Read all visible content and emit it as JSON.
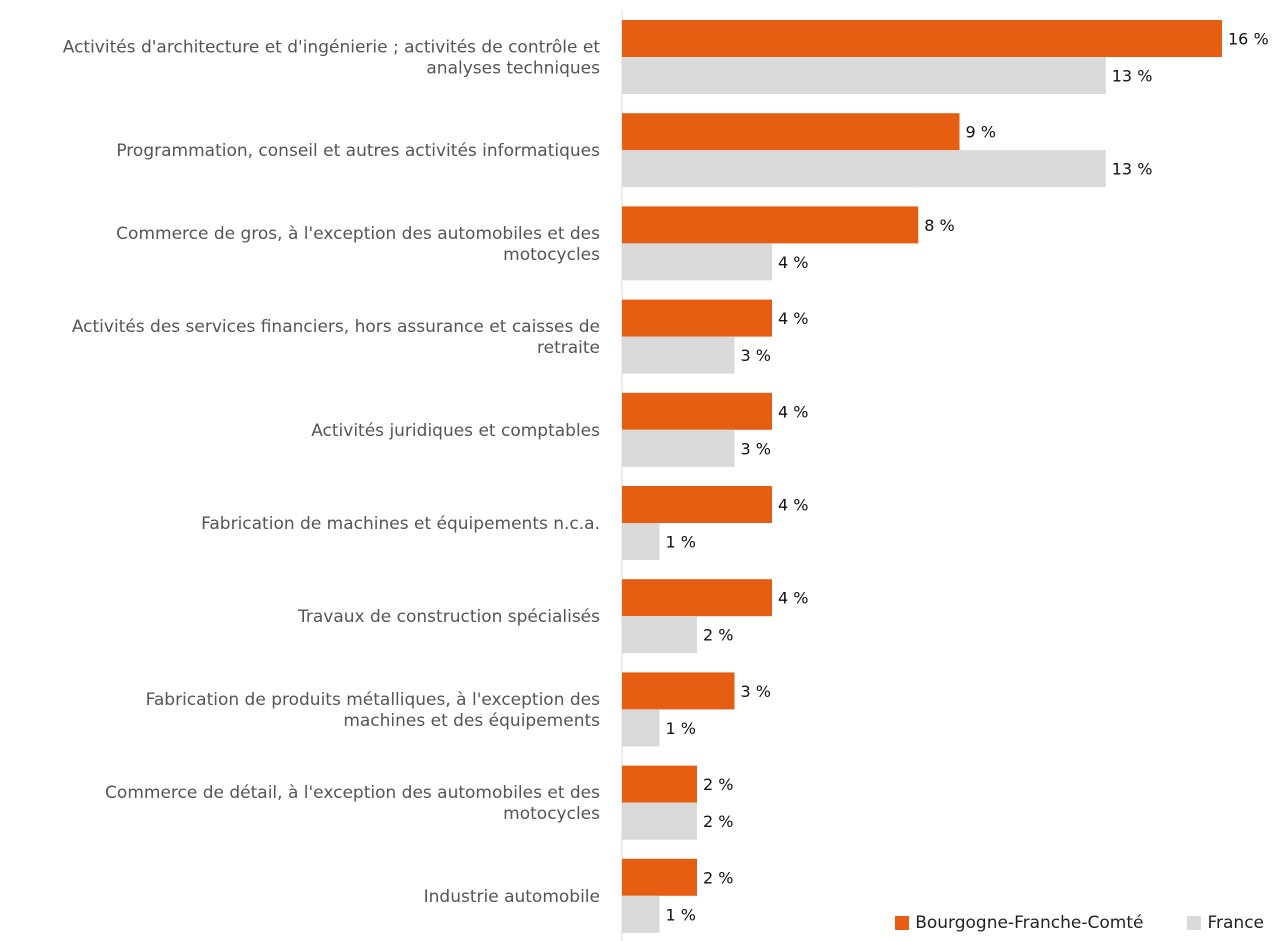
{
  "chart_data": {
    "type": "bar",
    "orientation": "horizontal",
    "categories": [
      [
        "Activités d'architecture et d'ingénierie ; activités de contrôle et",
        "analyses techniques"
      ],
      [
        "Programmation, conseil et autres activités informatiques"
      ],
      [
        "Commerce de gros, à l'exception des automobiles et des",
        "motocycles"
      ],
      [
        "Activités des services financiers, hors assurance et caisses de",
        "retraite"
      ],
      [
        "Activités juridiques et comptables"
      ],
      [
        "Fabrication de machines et équipements n.c.a."
      ],
      [
        "Travaux de construction spécialisés"
      ],
      [
        "Fabrication de produits métalliques, à l'exception des",
        "machines et des équipements"
      ],
      [
        "Commerce de détail, à l'exception des automobiles et des",
        "motocycles"
      ],
      [
        "Industrie automobile"
      ]
    ],
    "series": [
      {
        "name": "Bourgogne-Franche-Comté",
        "color": "#e55e12",
        "values": [
          16.0,
          9.0,
          7.9,
          4.0,
          4.0,
          4.0,
          4.0,
          3.0,
          2.0,
          2.0
        ],
        "labels": [
          "16 %",
          "9 %",
          "8 %",
          "4 %",
          "4 %",
          "4 %",
          "4 %",
          "3 %",
          "2 %",
          "2 %"
        ]
      },
      {
        "name": "France",
        "color": "#d9d9d9",
        "values": [
          12.9,
          12.9,
          4.0,
          3.0,
          3.0,
          1.0,
          2.0,
          1.0,
          2.0,
          1.0
        ],
        "labels": [
          "13 %",
          "13 %",
          "4 %",
          "3 %",
          "3 %",
          "1 %",
          "2 %",
          "1 %",
          "2 %",
          "1 %"
        ]
      }
    ],
    "xlim": [
      0,
      16
    ],
    "grid": false,
    "legend": "bottom-right"
  }
}
